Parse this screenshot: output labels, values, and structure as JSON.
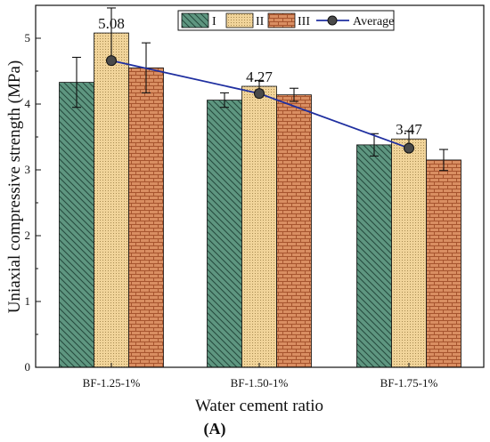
{
  "chart_data": {
    "type": "bar",
    "panel_label": "(A)",
    "xlabel": "Water cement ratio",
    "ylabel": "Uniaxial compressive strength (MPa)",
    "ylim": [
      0,
      5.5
    ],
    "yticks": [
      "0",
      "1",
      "2",
      "3",
      "4",
      "5"
    ],
    "categories": [
      "BF-1.25-1%",
      "BF-1.50-1%",
      "BF-1.75-1%"
    ],
    "series": [
      {
        "name": "I",
        "values": [
          4.33,
          4.06,
          3.38
        ],
        "errors": [
          0.38,
          0.11,
          0.17
        ],
        "color": "#5e9680",
        "pattern": "diagonal"
      },
      {
        "name": "II",
        "values": [
          5.08,
          4.27,
          3.47
        ],
        "errors": [
          0.38,
          0.09,
          0.12
        ],
        "color": "#e9c785",
        "pattern": "dots"
      },
      {
        "name": "III",
        "values": [
          4.55,
          4.14,
          3.15
        ],
        "errors": [
          0.38,
          0.1,
          0.16
        ],
        "color": "#d98e62",
        "pattern": "brick"
      }
    ],
    "average": {
      "name": "Average",
      "values": [
        4.66,
        4.16,
        3.33
      ],
      "color": "#1f2fa0"
    },
    "data_labels": [
      "5.08",
      "4.27",
      "3.47"
    ],
    "legend_position": "top-right",
    "grid": false
  }
}
